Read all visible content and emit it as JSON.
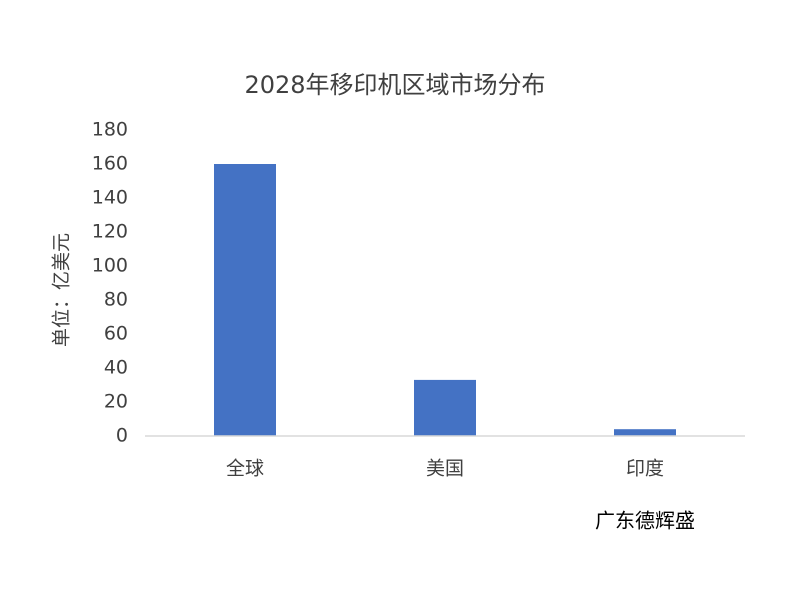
{
  "chart_data": {
    "type": "bar",
    "title": "2028年移印机区域市场分布",
    "y_label": "单位：亿美元",
    "categories": [
      "全球",
      "美国",
      "印度"
    ],
    "values": [
      160,
      33,
      4
    ],
    "color": "#4472c4",
    "ylim": [
      0,
      180
    ],
    "yticks": [
      0,
      20,
      40,
      60,
      80,
      100,
      120,
      140,
      160,
      180
    ],
    "grid": false,
    "annotation": "广东德辉盛"
  }
}
